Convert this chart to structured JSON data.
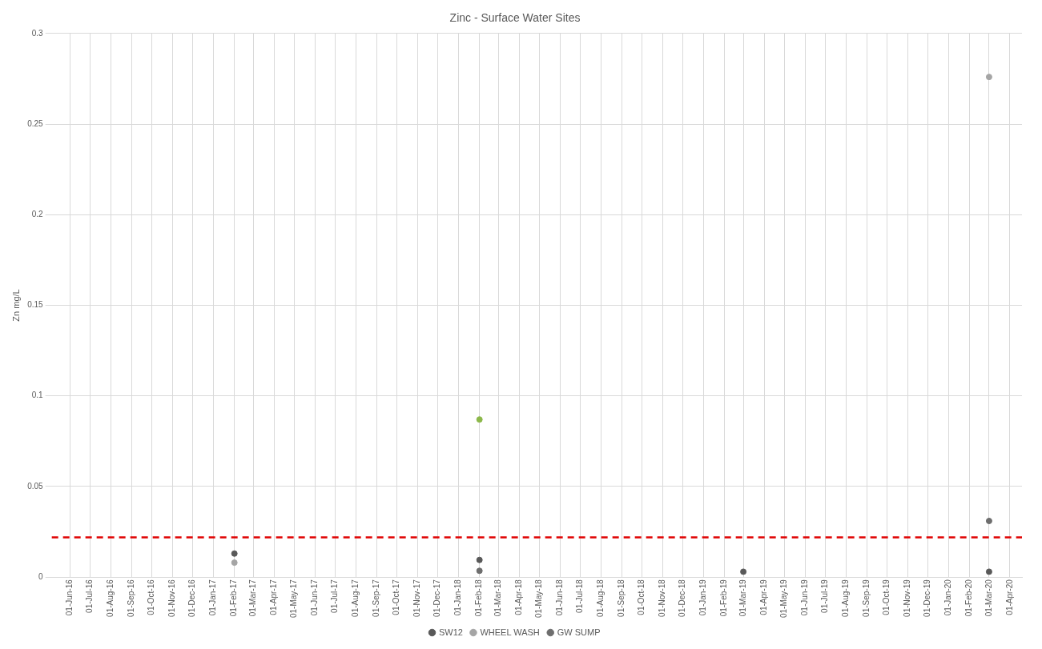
{
  "chart_data": {
    "type": "scatter",
    "title": "Zinc - Surface Water Sites",
    "ylabel": "Zn mg/L",
    "xlim": [
      "2016-05-05",
      "2020-04-19"
    ],
    "xticks": [
      {
        "value": "2016-06-01",
        "label": "01-Jun-16"
      },
      {
        "value": "2016-07-01",
        "label": "01-Jul-16"
      },
      {
        "value": "2016-08-01",
        "label": "01-Aug-16"
      },
      {
        "value": "2016-09-01",
        "label": "01-Sep-16"
      },
      {
        "value": "2016-10-01",
        "label": "01-Oct-16"
      },
      {
        "value": "2016-11-01",
        "label": "01-Nov-16"
      },
      {
        "value": "2016-12-01",
        "label": "01-Dec-16"
      },
      {
        "value": "2017-01-01",
        "label": "01-Jan-17"
      },
      {
        "value": "2017-02-01",
        "label": "01-Feb-17"
      },
      {
        "value": "2017-03-01",
        "label": "01-Mar-17"
      },
      {
        "value": "2017-04-01",
        "label": "01-Apr-17"
      },
      {
        "value": "2017-05-01",
        "label": "01-May-17"
      },
      {
        "value": "2017-06-01",
        "label": "01-Jun-17"
      },
      {
        "value": "2017-07-01",
        "label": "01-Jul-17"
      },
      {
        "value": "2017-08-01",
        "label": "01-Aug-17"
      },
      {
        "value": "2017-09-01",
        "label": "01-Sep-17"
      },
      {
        "value": "2017-10-01",
        "label": "01-Oct-17"
      },
      {
        "value": "2017-11-01",
        "label": "01-Nov-17"
      },
      {
        "value": "2017-12-01",
        "label": "01-Dec-17"
      },
      {
        "value": "2018-01-01",
        "label": "01-Jan-18"
      },
      {
        "value": "2018-02-01",
        "label": "01-Feb-18"
      },
      {
        "value": "2018-03-01",
        "label": "01-Mar-18"
      },
      {
        "value": "2018-04-01",
        "label": "01-Apr-18"
      },
      {
        "value": "2018-05-01",
        "label": "01-May-18"
      },
      {
        "value": "2018-06-01",
        "label": "01-Jun-18"
      },
      {
        "value": "2018-07-01",
        "label": "01-Jul-18"
      },
      {
        "value": "2018-08-01",
        "label": "01-Aug-18"
      },
      {
        "value": "2018-09-01",
        "label": "01-Sep-18"
      },
      {
        "value": "2018-10-01",
        "label": "01-Oct-18"
      },
      {
        "value": "2018-11-01",
        "label": "01-Nov-18"
      },
      {
        "value": "2018-12-01",
        "label": "01-Dec-18"
      },
      {
        "value": "2019-01-01",
        "label": "01-Jan-19"
      },
      {
        "value": "2019-02-01",
        "label": "01-Feb-19"
      },
      {
        "value": "2019-03-01",
        "label": "01-Mar-19"
      },
      {
        "value": "2019-04-01",
        "label": "01-Apr-19"
      },
      {
        "value": "2019-05-01",
        "label": "01-May-19"
      },
      {
        "value": "2019-06-01",
        "label": "01-Jun-19"
      },
      {
        "value": "2019-07-01",
        "label": "01-Jul-19"
      },
      {
        "value": "2019-08-01",
        "label": "01-Aug-19"
      },
      {
        "value": "2019-09-01",
        "label": "01-Sep-19"
      },
      {
        "value": "2019-10-01",
        "label": "01-Oct-19"
      },
      {
        "value": "2019-11-01",
        "label": "01-Nov-19"
      },
      {
        "value": "2019-12-01",
        "label": "01-Dec-19"
      },
      {
        "value": "2020-01-01",
        "label": "01-Jan-20"
      },
      {
        "value": "2020-02-01",
        "label": "01-Feb-20"
      },
      {
        "value": "2020-03-01",
        "label": "01-Mar-20"
      },
      {
        "value": "2020-04-01",
        "label": "01-Apr-20"
      }
    ],
    "ylim": [
      0,
      0.3
    ],
    "yticks": [
      0,
      0.05,
      0.1,
      0.15,
      0.2,
      0.25,
      0.3
    ],
    "grid": true,
    "legend": "bottom",
    "marker": "circle",
    "ref_lines": [
      {
        "axis": "y",
        "value": 0.022,
        "color": "#e00000",
        "line_style": "dashed"
      }
    ],
    "series": [
      {
        "name": "SW12",
        "color": "#595959",
        "x": [
          "2017-02-01",
          "2018-02-01",
          "2019-03-01",
          "2020-03-01"
        ],
        "values": [
          0.013,
          0.0095,
          0.003,
          0.003
        ]
      },
      {
        "name": "WHEEL WASH",
        "color": "#a5a5a5",
        "x": [
          "2017-02-01",
          "2020-03-01"
        ],
        "values": [
          0.008,
          0.276
        ]
      },
      {
        "name": "GW SUMP",
        "color": "#6e6e6e",
        "x": [
          "2018-02-01",
          "2020-03-01"
        ],
        "values": [
          0.0035,
          0.031
        ]
      },
      {
        "color": "#8cb84a",
        "x": [
          "2018-02-01"
        ],
        "values": [
          0.087
        ]
      }
    ]
  }
}
